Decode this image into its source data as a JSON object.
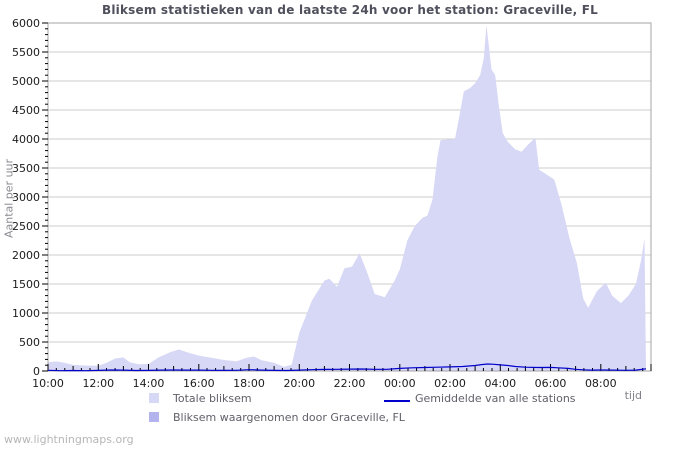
{
  "title": "Bliksem statistieken van de laatste 24h voor het station: Graceville, FL",
  "watermark": "www.lightningmaps.org",
  "axes": {
    "y_label": "Aantal per uur",
    "x_label": "tijd"
  },
  "legend": [
    {
      "label": "Totale bliksem",
      "swatch": "#d7d7f6",
      "type": "area"
    },
    {
      "label": "Bliksem waargenomen door Graceville, FL",
      "swatch": "#b3b3ee",
      "type": "area"
    },
    {
      "label": "Gemiddelde van alle stations",
      "swatch": "#0000cc",
      "type": "line"
    }
  ],
  "chart_data": {
    "type": "area",
    "title": "Bliksem statistieken van de laatste 24h voor het station: Graceville, FL",
    "xlabel": "tijd",
    "ylabel": "Aantal per uur",
    "grid": "horizontal",
    "legend_position": "bottom",
    "ylim": [
      0,
      6000
    ],
    "y_major_step": 500,
    "y_minor_step": 100,
    "x_range_hours": [
      0,
      24
    ],
    "x_start_time": "10:00",
    "x_minor_tick_minutes": 20,
    "x_tick_hours": [
      0,
      2,
      4,
      6,
      8,
      10,
      12,
      14,
      16,
      18,
      20,
      22
    ],
    "x_tick_labels": [
      "10:00",
      "12:00",
      "14:00",
      "16:00",
      "18:00",
      "20:00",
      "22:00",
      "00:00",
      "02:00",
      "04:00",
      "06:00",
      "08:00"
    ],
    "colors": {
      "grid": "#cccccc",
      "frame": "#a6a6a6",
      "tick": "#000000",
      "area_total": "#d7d7f6",
      "area_station": "#b3b3ee",
      "line_avg": "#0000cc",
      "title": "#50505c"
    },
    "series": [
      {
        "name": "Totale bliksem",
        "type": "area",
        "color": "#d7d7f6",
        "x": [
          0,
          0.33,
          0.67,
          1.0,
          1.5,
          2.0,
          2.33,
          2.67,
          3.0,
          3.25,
          3.6,
          4.0,
          4.4,
          4.9,
          5.2,
          5.6,
          6.0,
          6.5,
          7.0,
          7.5,
          7.9,
          8.2,
          8.5,
          9.0,
          9.4,
          9.7,
          10.0,
          10.5,
          11.0,
          11.2,
          11.5,
          11.8,
          12.1,
          12.4,
          12.7,
          13.0,
          13.4,
          13.8,
          14.0,
          14.3,
          14.6,
          14.9,
          15.1,
          15.3,
          15.5,
          15.62,
          16.2,
          16.4,
          16.55,
          16.8,
          17.0,
          17.2,
          17.35,
          17.45,
          17.55,
          17.65,
          17.8,
          17.95,
          18.1,
          18.3,
          18.6,
          18.85,
          19.1,
          19.4,
          19.55,
          19.8,
          20.15,
          20.45,
          20.75,
          21.05,
          21.3,
          21.5,
          21.85,
          22.2,
          22.45,
          22.8,
          23.1,
          23.4,
          23.6,
          23.74,
          23.8
        ],
        "values": [
          150,
          165,
          140,
          105,
          95,
          90,
          140,
          215,
          235,
          150,
          115,
          120,
          235,
          330,
          370,
          315,
          265,
          230,
          190,
          165,
          230,
          250,
          185,
          140,
          70,
          110,
          660,
          1210,
          1560,
          1590,
          1450,
          1770,
          1800,
          2030,
          1700,
          1330,
          1270,
          1560,
          1750,
          2250,
          2500,
          2640,
          2680,
          2950,
          3690,
          3980,
          4000,
          4450,
          4820,
          4880,
          4960,
          5100,
          5400,
          5960,
          5600,
          5200,
          5100,
          4550,
          4100,
          3950,
          3820,
          3780,
          3900,
          4020,
          3470,
          3400,
          3300,
          2850,
          2300,
          1860,
          1250,
          1090,
          1380,
          1520,
          1300,
          1170,
          1300,
          1500,
          1900,
          2290,
          0
        ]
      },
      {
        "name": "Bliksem waargenomen door Graceville, FL",
        "type": "area",
        "color": "#b3b3ee",
        "x": [
          0,
          23.8
        ],
        "values": [
          0,
          0
        ]
      },
      {
        "name": "Gemiddelde van alle stations",
        "type": "line",
        "color": "#0000cc",
        "x": [
          0,
          0.5,
          1.0,
          1.5,
          2.0,
          2.5,
          3.0,
          3.5,
          4.0,
          4.5,
          5.0,
          5.5,
          6.0,
          6.5,
          7.0,
          7.5,
          8.0,
          8.5,
          9.0,
          9.5,
          10.0,
          10.5,
          11.0,
          11.5,
          12.0,
          12.5,
          13.0,
          13.5,
          14.0,
          14.5,
          15.0,
          15.5,
          16.0,
          16.5,
          17.0,
          17.25,
          17.5,
          17.75,
          18.0,
          18.3,
          18.6,
          19.0,
          19.5,
          20.0,
          20.3,
          20.7,
          21.0,
          21.3,
          21.6,
          22.0,
          22.5,
          23.0,
          23.4,
          23.8
        ],
        "values": [
          12,
          5,
          8,
          5,
          10,
          18,
          15,
          8,
          10,
          15,
          18,
          15,
          15,
          12,
          10,
          12,
          22,
          15,
          10,
          8,
          15,
          22,
          28,
          30,
          32,
          35,
          30,
          30,
          45,
          55,
          60,
          65,
          70,
          78,
          95,
          110,
          120,
          115,
          105,
          95,
          78,
          65,
          60,
          62,
          55,
          45,
          30,
          20,
          15,
          18,
          15,
          12,
          15,
          38
        ]
      }
    ]
  }
}
